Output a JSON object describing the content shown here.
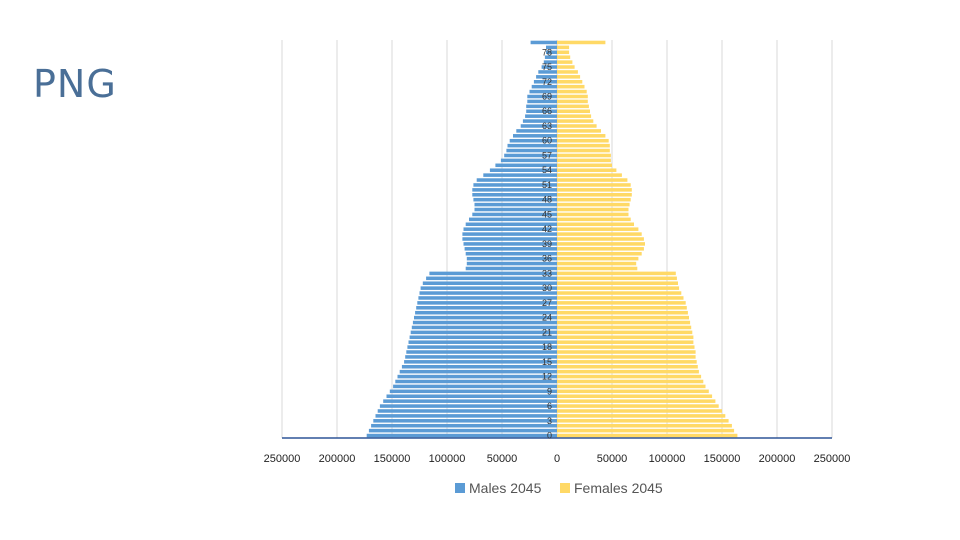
{
  "slide": {
    "title": "PNG"
  },
  "chart_data": {
    "type": "bar",
    "orientation": "horizontal",
    "title": "",
    "xlabel": "",
    "ylabel": "",
    "xlim": [
      -250000,
      250000
    ],
    "x_tick_values": [
      -250000,
      -200000,
      -150000,
      -100000,
      -50000,
      0,
      50000,
      100000,
      150000,
      200000,
      250000
    ],
    "x_tick_labels": [
      "250000",
      "200000",
      "150000",
      "100000",
      "50000",
      "0",
      "50000",
      "100000",
      "150000",
      "200000",
      "250000"
    ],
    "age_tick_labels": [
      "0",
      "3",
      "6",
      "9",
      "12",
      "15",
      "18",
      "21",
      "24",
      "27",
      "30",
      "33",
      "36",
      "39",
      "42",
      "45",
      "48",
      "51",
      "54",
      "57",
      "60",
      "63",
      "66",
      "69",
      "72",
      "75",
      "78"
    ],
    "ages": [
      0,
      1,
      2,
      3,
      4,
      5,
      6,
      7,
      8,
      9,
      10,
      11,
      12,
      13,
      14,
      15,
      16,
      17,
      18,
      19,
      20,
      21,
      22,
      23,
      24,
      25,
      26,
      27,
      28,
      29,
      30,
      31,
      32,
      33,
      34,
      35,
      36,
      37,
      38,
      39,
      40,
      41,
      42,
      43,
      44,
      45,
      46,
      47,
      48,
      49,
      50,
      51,
      52,
      53,
      54,
      55,
      56,
      57,
      58,
      59,
      60,
      61,
      62,
      63,
      64,
      65,
      66,
      67,
      68,
      69,
      70,
      71,
      72,
      73,
      74,
      75,
      76,
      77,
      78,
      79,
      80
    ],
    "legend_position": "bottom",
    "series": [
      {
        "name": "Males 2045",
        "color": "#5b9bd5",
        "values": [
          173000,
          171000,
          169000,
          167000,
          165000,
          163000,
          161000,
          158000,
          155000,
          152000,
          149000,
          147000,
          145000,
          143000,
          141000,
          139000,
          138000,
          137000,
          136000,
          135000,
          134000,
          133000,
          132000,
          131000,
          130000,
          129000,
          128000,
          127000,
          126000,
          125000,
          124000,
          122000,
          119000,
          116000,
          83000,
          82000,
          82000,
          83000,
          84000,
          85000,
          86000,
          86000,
          85000,
          83000,
          80000,
          77000,
          75000,
          75000,
          76000,
          77000,
          77000,
          76000,
          73000,
          67000,
          61000,
          56000,
          51000,
          48000,
          46000,
          45000,
          43000,
          40000,
          37000,
          33000,
          31000,
          29000,
          28000,
          28000,
          27000,
          27000,
          25000,
          23000,
          21000,
          19000,
          17000,
          14000,
          12000,
          11000,
          10000,
          10000,
          24000
        ]
      },
      {
        "name": "Females 2045",
        "color": "#ffd966",
        "values": [
          164000,
          161000,
          159000,
          156000,
          153000,
          150000,
          147000,
          144000,
          141000,
          138000,
          135000,
          133000,
          131000,
          129000,
          128000,
          127000,
          126000,
          126000,
          125000,
          124000,
          124000,
          123000,
          122000,
          121000,
          120000,
          119000,
          118000,
          117000,
          115000,
          113000,
          111000,
          110000,
          109000,
          108000,
          73000,
          72000,
          74000,
          77000,
          79000,
          80000,
          79000,
          77000,
          74000,
          70000,
          67000,
          65000,
          65000,
          66000,
          67000,
          68000,
          68000,
          67000,
          64000,
          59000,
          54000,
          50000,
          49000,
          49000,
          48000,
          48000,
          47000,
          44000,
          40000,
          36000,
          33000,
          31000,
          30000,
          29000,
          28000,
          28000,
          27000,
          25000,
          23000,
          21000,
          19000,
          16000,
          14000,
          12000,
          11000,
          11000,
          44000
        ]
      }
    ]
  }
}
